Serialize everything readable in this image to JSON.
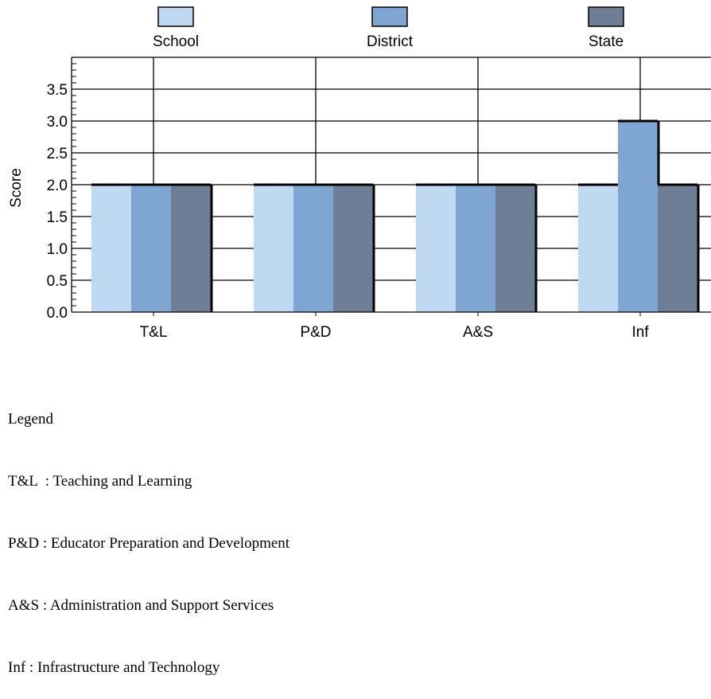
{
  "chart_data": {
    "type": "bar",
    "categories": [
      "T&L",
      "P&D",
      "A&S",
      "Inf"
    ],
    "series": [
      {
        "name": "School",
        "color": "#c0d9f3",
        "values": [
          2.0,
          2.0,
          2.0,
          2.0
        ]
      },
      {
        "name": "District",
        "color": "#7fa6d2",
        "values": [
          2.0,
          2.0,
          2.0,
          3.0
        ]
      },
      {
        "name": "State",
        "color": "#6e7e96",
        "values": [
          2.0,
          2.0,
          2.0,
          2.0
        ]
      }
    ],
    "ylabel": "Score",
    "ylim": [
      0,
      4
    ],
    "yticks": [
      "0.0",
      "0.5",
      "1.0",
      "1.5",
      "2.0",
      "2.5",
      "3.0",
      "3.5"
    ],
    "grid": true,
    "legend_position": "top"
  },
  "abbreviation_legend": {
    "heading": "Legend",
    "items": [
      {
        "abbr": "T&L",
        "sep": "  : ",
        "full": "Teaching and Learning"
      },
      {
        "abbr": "P&D",
        "sep": " : ",
        "full": "Educator Preparation and Development"
      },
      {
        "abbr": "A&S",
        "sep": " : ",
        "full": "Administration and Support Services"
      },
      {
        "abbr": "Inf",
        "sep": " : ",
        "full": "Infrastructure and Technology"
      }
    ]
  }
}
